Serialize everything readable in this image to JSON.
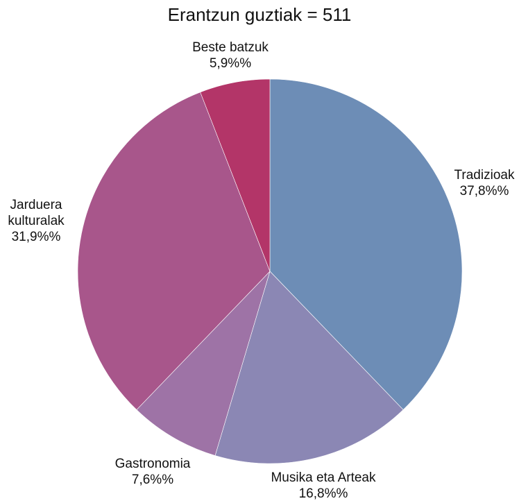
{
  "chart_data": {
    "type": "pie",
    "title": "Erantzun guztiak = 511",
    "slices": [
      {
        "label": "Tradizioak",
        "value": 37.8,
        "value_text": "37,8%%",
        "color": "#6d8db6"
      },
      {
        "label": "Musika eta Arteak",
        "value": 16.8,
        "value_text": "16,8%%",
        "color": "#8b87b4"
      },
      {
        "label": "Gastronomia",
        "value": 7.6,
        "value_text": "7,6%%",
        "color": "#9e73a6"
      },
      {
        "label": "Jarduera kulturalak",
        "value": 31.9,
        "value_text": "31,9%%",
        "color": "#a8568b"
      },
      {
        "label": "Beste batzuk",
        "value": 5.9,
        "value_text": "5,9%%",
        "color": "#b33568"
      }
    ]
  }
}
